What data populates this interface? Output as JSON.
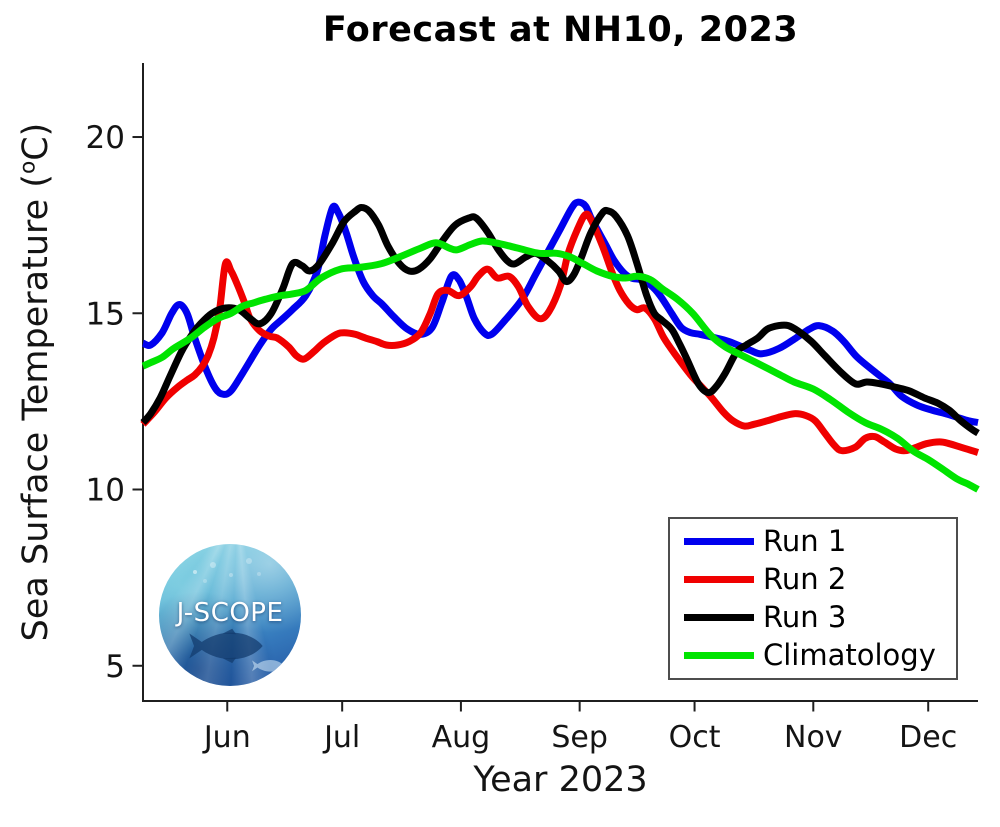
{
  "chart_data": {
    "type": "line",
    "title": "Forecast at NH10, 2023",
    "xlabel": "Year 2023",
    "ylabel": "Sea Surface Temperature (oC)",
    "ylabel_parts": {
      "prefix": "Sea Surface Temperature (",
      "sup": "o",
      "suffix": "C)"
    },
    "x_unit": "day of year 2023",
    "xlim": [
      130,
      348
    ],
    "ylim": [
      4,
      22.1
    ],
    "grid": false,
    "legend_position": "lower right",
    "axis_color": "#1f1f1f",
    "y_ticks": [
      {
        "value": 5,
        "label": "5"
      },
      {
        "value": 10,
        "label": "10"
      },
      {
        "value": 15,
        "label": "15"
      },
      {
        "value": 20,
        "label": "20"
      }
    ],
    "x_ticks": [
      {
        "day": 152,
        "label": "Jun"
      },
      {
        "day": 182,
        "label": "Jul"
      },
      {
        "day": 213,
        "label": "Aug"
      },
      {
        "day": 244,
        "label": "Sep"
      },
      {
        "day": 274,
        "label": "Oct"
      },
      {
        "day": 305,
        "label": "Nov"
      },
      {
        "day": 335,
        "label": "Dec"
      }
    ],
    "series": [
      {
        "name": "Run 1",
        "color": "#0000ee",
        "points": [
          [
            130,
            14.15
          ],
          [
            132,
            14.1
          ],
          [
            135,
            14.45
          ],
          [
            137.5,
            15.0
          ],
          [
            139.5,
            15.25
          ],
          [
            141.5,
            15.0
          ],
          [
            143.5,
            14.3
          ],
          [
            146.5,
            13.4
          ],
          [
            149,
            12.85
          ],
          [
            151,
            12.7
          ],
          [
            153,
            12.8
          ],
          [
            156,
            13.3
          ],
          [
            160.5,
            14.1
          ],
          [
            163.5,
            14.55
          ],
          [
            166,
            14.8
          ],
          [
            169,
            15.1
          ],
          [
            172.5,
            15.5
          ],
          [
            175.5,
            16.2
          ],
          [
            177.5,
            17.2
          ],
          [
            179.5,
            18.0
          ],
          [
            181,
            17.85
          ],
          [
            183,
            17.3
          ],
          [
            185,
            16.6
          ],
          [
            187.5,
            15.9
          ],
          [
            190,
            15.5
          ],
          [
            192.5,
            15.25
          ],
          [
            195.5,
            14.9
          ],
          [
            199,
            14.55
          ],
          [
            202.5,
            14.4
          ],
          [
            205.5,
            14.6
          ],
          [
            208,
            15.3
          ],
          [
            210.5,
            16.05
          ],
          [
            212.5,
            15.95
          ],
          [
            214.5,
            15.45
          ],
          [
            216.5,
            14.85
          ],
          [
            219,
            14.45
          ],
          [
            221,
            14.4
          ],
          [
            224.5,
            14.8
          ],
          [
            229,
            15.4
          ],
          [
            232.5,
            16.1
          ],
          [
            236,
            16.8
          ],
          [
            239,
            17.4
          ],
          [
            242,
            18.0
          ],
          [
            243.5,
            18.15
          ],
          [
            245.5,
            18.05
          ],
          [
            247,
            17.7
          ],
          [
            248.5,
            17.4
          ],
          [
            251,
            16.9
          ],
          [
            253,
            16.5
          ],
          [
            255.5,
            16.15
          ],
          [
            257.5,
            16.0
          ],
          [
            260,
            15.95
          ],
          [
            262.5,
            15.8
          ],
          [
            265,
            15.5
          ],
          [
            268,
            15.0
          ],
          [
            270.5,
            14.6
          ],
          [
            273,
            14.45
          ],
          [
            275.5,
            14.4
          ],
          [
            279.5,
            14.3
          ],
          [
            283,
            14.2
          ],
          [
            288.5,
            13.95
          ],
          [
            291.5,
            13.85
          ],
          [
            296,
            14.0
          ],
          [
            300.5,
            14.3
          ],
          [
            304,
            14.55
          ],
          [
            306.5,
            14.65
          ],
          [
            310,
            14.5
          ],
          [
            313,
            14.2
          ],
          [
            316.5,
            13.75
          ],
          [
            321.5,
            13.3
          ],
          [
            325,
            13.0
          ],
          [
            328,
            12.65
          ],
          [
            332,
            12.4
          ],
          [
            336,
            12.25
          ],
          [
            339.5,
            12.15
          ],
          [
            342.5,
            12.05
          ],
          [
            345.5,
            11.95
          ],
          [
            348,
            11.9
          ]
        ]
      },
      {
        "name": "Run 2",
        "color": "#f00000",
        "points": [
          [
            130,
            11.85
          ],
          [
            133,
            12.2
          ],
          [
            136,
            12.6
          ],
          [
            139,
            12.9
          ],
          [
            141.5,
            13.1
          ],
          [
            143.5,
            13.25
          ],
          [
            145.5,
            13.5
          ],
          [
            147,
            13.8
          ],
          [
            148.5,
            14.3
          ],
          [
            150,
            15.1
          ],
          [
            151.5,
            16.4
          ],
          [
            153,
            16.2
          ],
          [
            154.5,
            15.85
          ],
          [
            156.5,
            15.3
          ],
          [
            158,
            14.85
          ],
          [
            160.5,
            14.5
          ],
          [
            163,
            14.35
          ],
          [
            165,
            14.3
          ],
          [
            168,
            14.05
          ],
          [
            170,
            13.8
          ],
          [
            172,
            13.7
          ],
          [
            174.5,
            13.9
          ],
          [
            177,
            14.15
          ],
          [
            180.5,
            14.4
          ],
          [
            182.5,
            14.45
          ],
          [
            185.5,
            14.4
          ],
          [
            188,
            14.3
          ],
          [
            191,
            14.2
          ],
          [
            193.5,
            14.1
          ],
          [
            196.5,
            14.1
          ],
          [
            199.5,
            14.2
          ],
          [
            202.5,
            14.45
          ],
          [
            205,
            15.0
          ],
          [
            207,
            15.55
          ],
          [
            209.5,
            15.65
          ],
          [
            212.5,
            15.5
          ],
          [
            215.5,
            15.75
          ],
          [
            217.5,
            16.05
          ],
          [
            220,
            16.25
          ],
          [
            222.5,
            16.0
          ],
          [
            225.5,
            16.05
          ],
          [
            228,
            15.75
          ],
          [
            230.5,
            15.2
          ],
          [
            233.5,
            14.85
          ],
          [
            236,
            15.05
          ],
          [
            239,
            15.8
          ],
          [
            241,
            16.7
          ],
          [
            243.5,
            17.4
          ],
          [
            245.5,
            17.8
          ],
          [
            247,
            17.65
          ],
          [
            250,
            16.9
          ],
          [
            252.5,
            16.15
          ],
          [
            254.5,
            15.65
          ],
          [
            257,
            15.25
          ],
          [
            259,
            15.1
          ],
          [
            261,
            15.15
          ],
          [
            263.5,
            14.85
          ],
          [
            266,
            14.3
          ],
          [
            269.5,
            13.75
          ],
          [
            273,
            13.25
          ],
          [
            275.5,
            12.95
          ],
          [
            278.5,
            12.6
          ],
          [
            281.5,
            12.2
          ],
          [
            284,
            11.95
          ],
          [
            287,
            11.8
          ],
          [
            289.5,
            11.85
          ],
          [
            293,
            11.95
          ],
          [
            296,
            12.05
          ],
          [
            300,
            12.15
          ],
          [
            303,
            12.1
          ],
          [
            305.5,
            11.95
          ],
          [
            308,
            11.6
          ],
          [
            310.5,
            11.25
          ],
          [
            312.5,
            11.1
          ],
          [
            316,
            11.2
          ],
          [
            318.5,
            11.45
          ],
          [
            321,
            11.5
          ],
          [
            323.5,
            11.35
          ],
          [
            326.5,
            11.15
          ],
          [
            329,
            11.1
          ],
          [
            332,
            11.2
          ],
          [
            334.5,
            11.3
          ],
          [
            338,
            11.35
          ],
          [
            340.5,
            11.3
          ],
          [
            343.5,
            11.2
          ],
          [
            346.5,
            11.1
          ],
          [
            348,
            11.05
          ]
        ]
      },
      {
        "name": "Run 3",
        "color": "#000000",
        "points": [
          [
            130,
            11.9
          ],
          [
            132,
            12.15
          ],
          [
            134.5,
            12.6
          ],
          [
            137,
            13.2
          ],
          [
            140,
            13.9
          ],
          [
            142.5,
            14.35
          ],
          [
            145,
            14.7
          ],
          [
            148,
            15.0
          ],
          [
            151.5,
            15.15
          ],
          [
            155,
            15.1
          ],
          [
            158,
            14.85
          ],
          [
            160.5,
            14.7
          ],
          [
            163.5,
            15.0
          ],
          [
            166.5,
            15.7
          ],
          [
            169,
            16.4
          ],
          [
            171.5,
            16.35
          ],
          [
            173.5,
            16.2
          ],
          [
            176,
            16.4
          ],
          [
            179.5,
            17.0
          ],
          [
            182.5,
            17.6
          ],
          [
            185.5,
            17.9
          ],
          [
            187,
            18.0
          ],
          [
            189,
            17.9
          ],
          [
            191.5,
            17.5
          ],
          [
            194,
            16.9
          ],
          [
            197,
            16.4
          ],
          [
            199.5,
            16.2
          ],
          [
            202,
            16.25
          ],
          [
            205,
            16.55
          ],
          [
            208.5,
            17.1
          ],
          [
            211.5,
            17.5
          ],
          [
            215,
            17.7
          ],
          [
            217,
            17.7
          ],
          [
            220,
            17.3
          ],
          [
            222.5,
            16.85
          ],
          [
            225,
            16.5
          ],
          [
            227,
            16.4
          ],
          [
            230,
            16.6
          ],
          [
            232.5,
            16.7
          ],
          [
            235.5,
            16.5
          ],
          [
            238.5,
            16.2
          ],
          [
            240.5,
            15.9
          ],
          [
            242.5,
            16.1
          ],
          [
            244.5,
            16.6
          ],
          [
            247,
            17.3
          ],
          [
            250,
            17.85
          ],
          [
            251.5,
            17.9
          ],
          [
            253.5,
            17.75
          ],
          [
            256.5,
            17.2
          ],
          [
            259,
            16.4
          ],
          [
            261.5,
            15.5
          ],
          [
            263.5,
            15.0
          ],
          [
            265.5,
            14.8
          ],
          [
            268,
            14.55
          ],
          [
            270,
            14.15
          ],
          [
            272,
            13.7
          ],
          [
            275,
            13.0
          ],
          [
            277.5,
            12.75
          ],
          [
            279.5,
            12.9
          ],
          [
            282,
            13.3
          ],
          [
            285,
            13.9
          ],
          [
            287.5,
            14.1
          ],
          [
            290.5,
            14.3
          ],
          [
            293,
            14.55
          ],
          [
            296,
            14.65
          ],
          [
            298.5,
            14.65
          ],
          [
            301,
            14.5
          ],
          [
            304.5,
            14.2
          ],
          [
            308,
            13.8
          ],
          [
            312,
            13.35
          ],
          [
            316,
            13.0
          ],
          [
            319,
            13.05
          ],
          [
            322.5,
            13.0
          ],
          [
            326.5,
            12.9
          ],
          [
            330,
            12.8
          ],
          [
            334,
            12.6
          ],
          [
            337.5,
            12.45
          ],
          [
            340.5,
            12.25
          ],
          [
            343.5,
            11.95
          ],
          [
            346.5,
            11.7
          ],
          [
            348,
            11.6
          ]
        ]
      },
      {
        "name": "Climatology",
        "color": "#00e400",
        "points": [
          [
            130,
            13.5
          ],
          [
            132,
            13.6
          ],
          [
            135,
            13.75
          ],
          [
            138,
            14.0
          ],
          [
            142.5,
            14.3
          ],
          [
            146,
            14.6
          ],
          [
            149.5,
            14.85
          ],
          [
            153,
            15.0
          ],
          [
            156,
            15.2
          ],
          [
            159,
            15.3
          ],
          [
            162,
            15.4
          ],
          [
            166,
            15.5
          ],
          [
            169,
            15.55
          ],
          [
            172.5,
            15.65
          ],
          [
            176.5,
            16.0
          ],
          [
            181.5,
            16.25
          ],
          [
            186.5,
            16.3
          ],
          [
            192,
            16.4
          ],
          [
            197,
            16.6
          ],
          [
            202.5,
            16.85
          ],
          [
            206.5,
            17.0
          ],
          [
            210,
            16.85
          ],
          [
            212,
            16.8
          ],
          [
            215.5,
            16.95
          ],
          [
            218.5,
            17.05
          ],
          [
            222,
            17.0
          ],
          [
            226,
            16.9
          ],
          [
            229.5,
            16.8
          ],
          [
            233.5,
            16.7
          ],
          [
            238,
            16.7
          ],
          [
            241.5,
            16.6
          ],
          [
            245,
            16.4
          ],
          [
            248.5,
            16.2
          ],
          [
            252.5,
            16.05
          ],
          [
            256,
            16.0
          ],
          [
            259,
            16.05
          ],
          [
            262.5,
            15.95
          ],
          [
            265.5,
            15.7
          ],
          [
            269.5,
            15.4
          ],
          [
            273.5,
            15.0
          ],
          [
            278,
            14.4
          ],
          [
            282,
            14.05
          ],
          [
            286.5,
            13.8
          ],
          [
            291,
            13.55
          ],
          [
            295.5,
            13.3
          ],
          [
            300,
            13.05
          ],
          [
            305,
            12.85
          ],
          [
            309.5,
            12.55
          ],
          [
            314,
            12.2
          ],
          [
            318.5,
            11.9
          ],
          [
            323,
            11.7
          ],
          [
            327,
            11.45
          ],
          [
            331,
            11.1
          ],
          [
            335,
            10.85
          ],
          [
            338.5,
            10.6
          ],
          [
            342.5,
            10.3
          ],
          [
            345.5,
            10.15
          ],
          [
            348,
            10.0
          ]
        ]
      }
    ]
  },
  "logo": {
    "text": "J-SCOPE"
  }
}
